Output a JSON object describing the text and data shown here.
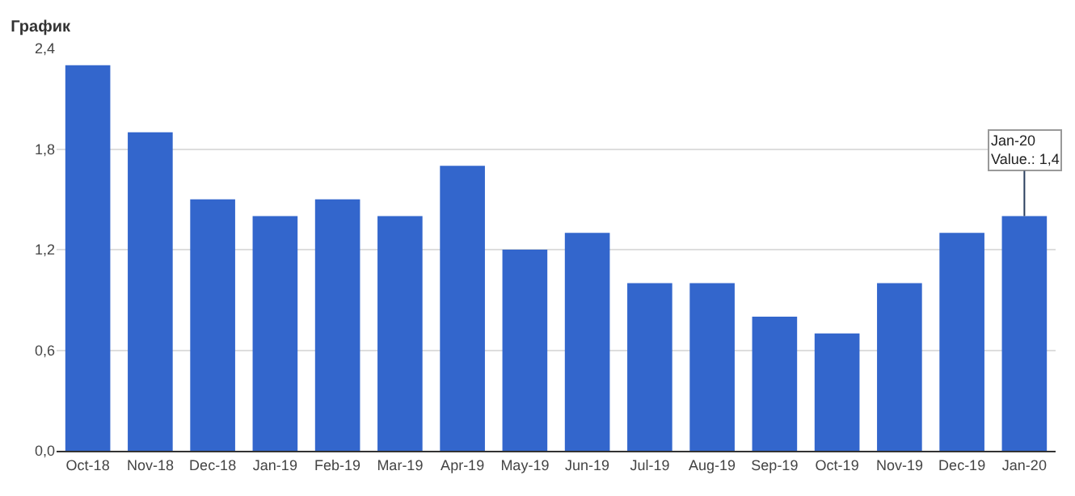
{
  "chart_data": {
    "type": "bar",
    "title": "График",
    "categories": [
      "Oct-18",
      "Nov-18",
      "Dec-18",
      "Jan-19",
      "Feb-19",
      "Mar-19",
      "Apr-19",
      "May-19",
      "Jun-19",
      "Jul-19",
      "Aug-19",
      "Sep-19",
      "Oct-19",
      "Nov-19",
      "Dec-19",
      "Jan-20"
    ],
    "values": [
      2.3,
      1.9,
      1.5,
      1.4,
      1.5,
      1.4,
      1.7,
      1.2,
      1.3,
      1.0,
      1.0,
      0.8,
      0.7,
      1.0,
      1.3,
      1.4
    ],
    "color": "#3366cc",
    "ylim": [
      0,
      2.4
    ],
    "yticks": [
      {
        "value": 0,
        "label": "0,0"
      },
      {
        "value": 0.6,
        "label": "0,6"
      },
      {
        "value": 1.2,
        "label": "1,2"
      },
      {
        "value": 1.8,
        "label": "1,8"
      },
      {
        "value": 2.4,
        "label": "2,4"
      }
    ],
    "grid": "y",
    "legend": false,
    "annotations": [
      {
        "text": "Jan-20\nValue.: 1,4",
        "x": "Jan-20",
        "y": 1.4
      }
    ]
  }
}
